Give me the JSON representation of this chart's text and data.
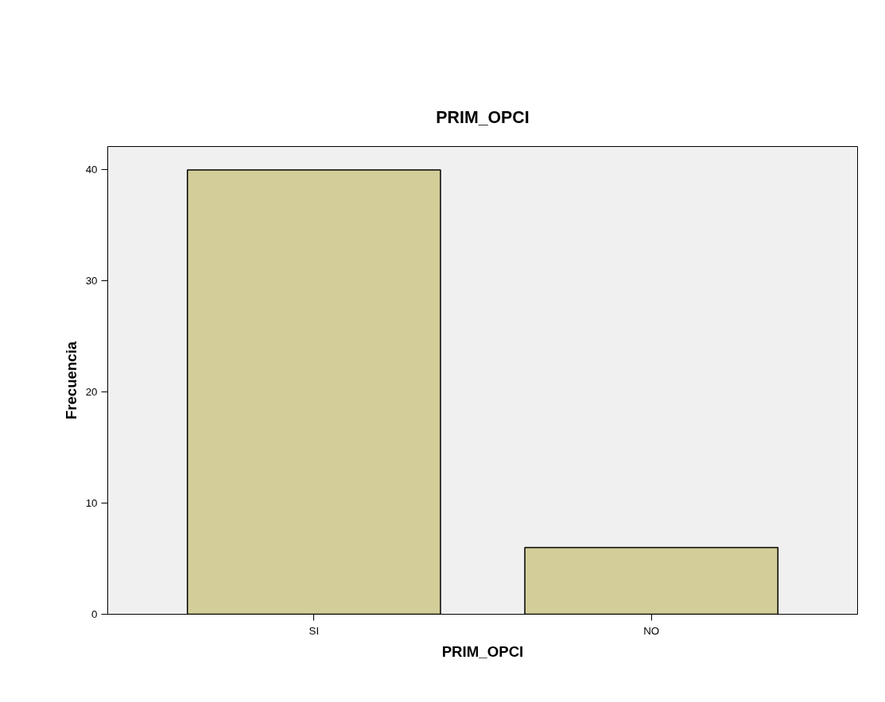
{
  "chart_data": {
    "type": "bar",
    "title": "PRIM_OPCI",
    "xlabel": "PRIM_OPCI",
    "ylabel": "Frecuencia",
    "categories": [
      "SI",
      "NO"
    ],
    "series": [
      {
        "color": "#d3ce99",
        "values": [
          40,
          6
        ]
      }
    ],
    "ylim": [
      0,
      42.1
    ],
    "yticks": [
      0,
      10,
      20,
      30,
      40
    ],
    "grid": false
  }
}
